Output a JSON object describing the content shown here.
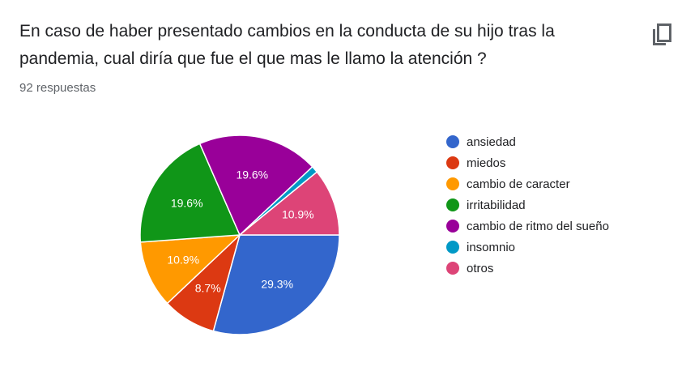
{
  "header": {
    "title": "En caso de haber presentado cambios en la conducta de su hijo tras la pandemia, cual diría que fue el que mas le llamo la atención ?",
    "responses_label": "92 respuestas",
    "copy_icon": "copy-icon"
  },
  "chart_data": {
    "type": "pie",
    "title": "En caso de haber presentado cambios en la conducta de su hijo tras la pandemia, cual diría que fue el que mas le llamo la atención ?",
    "legend_position": "right",
    "slices": [
      {
        "label": "ansiedad",
        "value": 29.3,
        "value_label": "29.3%",
        "color": "#3366cc"
      },
      {
        "label": "miedos",
        "value": 8.7,
        "value_label": "8.7%",
        "color": "#dc3912"
      },
      {
        "label": "cambio de caracter",
        "value": 10.9,
        "value_label": "10.9%",
        "color": "#ff9900"
      },
      {
        "label": "irritabilidad",
        "value": 19.6,
        "value_label": "19.6%",
        "color": "#109618"
      },
      {
        "label": "cambio de ritmo del sueño",
        "value": 19.6,
        "value_label": "19.6%",
        "color": "#990099"
      },
      {
        "label": "insomnio",
        "value": 1.1,
        "value_label": "",
        "color": "#0099c6"
      },
      {
        "label": "otros",
        "value": 10.9,
        "value_label": "10.9%",
        "color": "#dd4477"
      }
    ]
  }
}
